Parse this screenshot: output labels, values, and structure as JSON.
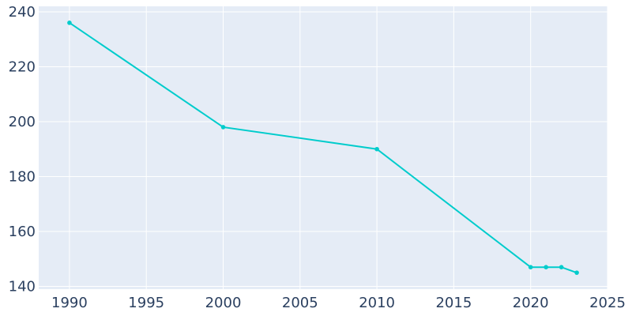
{
  "chart_data": {
    "type": "line",
    "title": "",
    "xlabel": "",
    "ylabel": "",
    "x": [
      1990,
      2000,
      2010,
      2020,
      2021,
      2022,
      2023
    ],
    "series": [
      {
        "values": [
          236,
          198,
          190,
          147,
          147,
          147,
          145
        ]
      }
    ],
    "xlim": [
      1988,
      2025
    ],
    "ylim": [
      139,
      242
    ],
    "x_ticks": [
      1990,
      1995,
      2000,
      2005,
      2010,
      2015,
      2020,
      2025
    ],
    "y_ticks": [
      140,
      160,
      180,
      200,
      220,
      240
    ],
    "grid": true,
    "legend": "none",
    "colors": {
      "plot_background": "#e5ecf6",
      "grid": "#ffffff",
      "series": "#00cccc",
      "text": "#2a3f5f"
    }
  }
}
